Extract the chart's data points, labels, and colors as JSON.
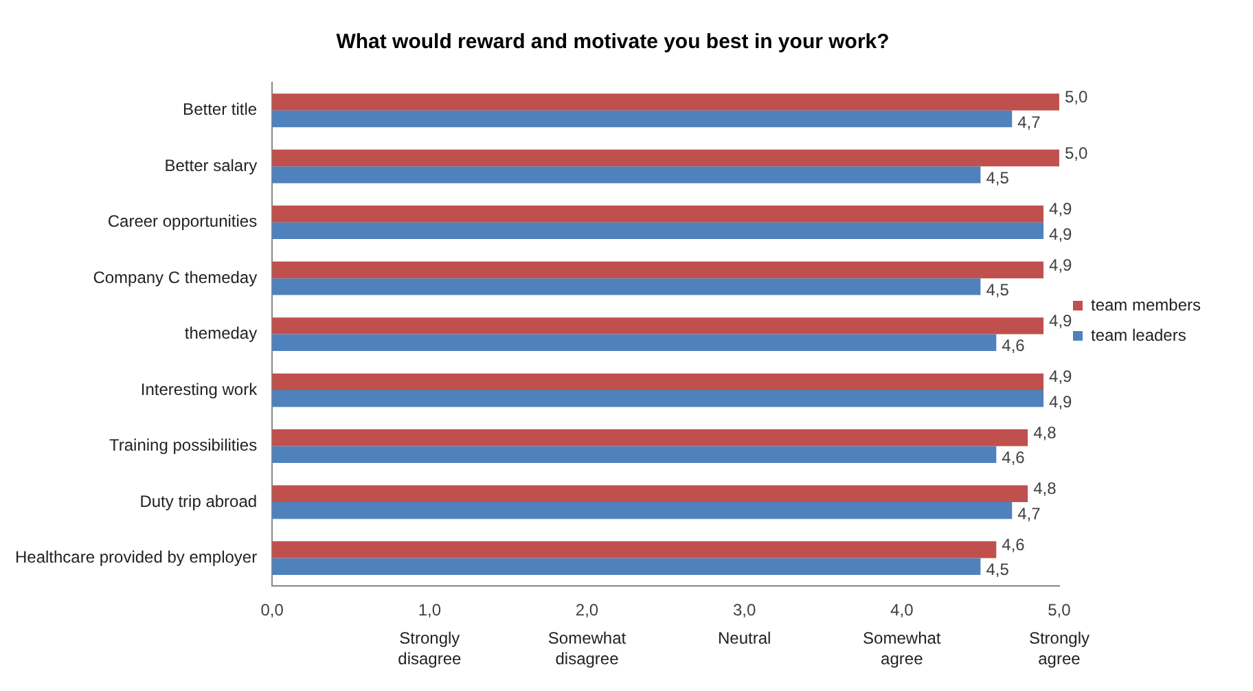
{
  "chart_data": {
    "type": "bar",
    "orientation": "horizontal",
    "title": "What would reward and motivate you best in your work?",
    "categories": [
      "Better title",
      "Better salary",
      "Career opportunities",
      "Company C themeday",
      "themeday",
      "Interesting work",
      "Training possibilities",
      "Duty trip abroad",
      "Healthcare provided by employer"
    ],
    "series": [
      {
        "name": "team members",
        "color": "#c0504d",
        "values": [
          5.0,
          5.0,
          4.9,
          4.9,
          4.9,
          4.9,
          4.8,
          4.8,
          4.6
        ],
        "value_labels": [
          "5,0",
          "5,0",
          "4,9",
          "4,9",
          "4,9",
          "4,9",
          "4,8",
          "4,8",
          "4,6"
        ]
      },
      {
        "name": "team leaders",
        "color": "#4f81bd",
        "values": [
          4.7,
          4.5,
          4.9,
          4.5,
          4.6,
          4.9,
          4.6,
          4.7,
          4.5
        ],
        "value_labels": [
          "4,7",
          "4,5",
          "4,9",
          "4,5",
          "4,6",
          "4,9",
          "4,6",
          "4,7",
          "4,5"
        ]
      }
    ],
    "xlim": [
      0,
      5
    ],
    "xticks": [
      {
        "value": 0,
        "label": "0,0"
      },
      {
        "value": 1,
        "label": "1,0"
      },
      {
        "value": 2,
        "label": "2,0"
      },
      {
        "value": 3,
        "label": "3,0"
      },
      {
        "value": 4,
        "label": "4,0"
      },
      {
        "value": 5,
        "label": "5,0"
      }
    ],
    "annotations": [
      "Strongly\ndisagree",
      "Somewhat\ndisagree",
      "Neutral",
      "Somewhat\nagree",
      "Strongly\nagree"
    ],
    "grid": false,
    "legend": "right"
  }
}
